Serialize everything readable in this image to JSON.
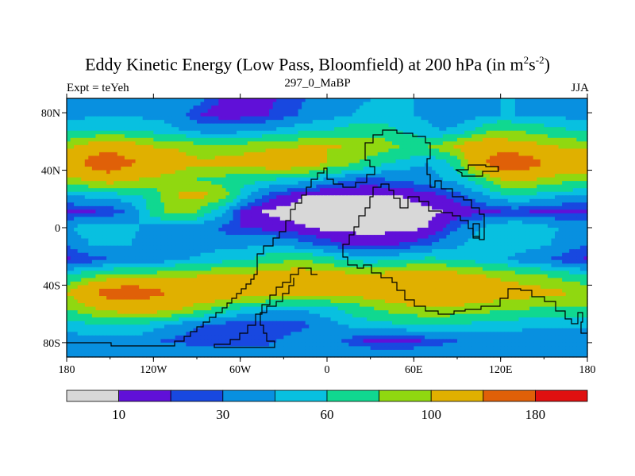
{
  "title": {
    "main": "Eddy Kinetic Energy (Low Pass, Bloomfield) at 200 hPa (in m",
    "sup1": "2",
    "mid": "s",
    "sup2": "-2",
    "end": ")"
  },
  "left_label": "Expt = teYeh",
  "center_label": "297_0_MaBP",
  "right_label": "JJA",
  "colors": {
    "background": "#ffffff",
    "missing": "#d8d8d8",
    "coast": "#000000"
  },
  "chart_data": {
    "type": "heatmap",
    "projection": "cylindrical-equidistant",
    "x_range": [
      -180,
      180
    ],
    "y_range": [
      -90,
      90
    ],
    "x_ticks": [
      {
        "value": -180,
        "label": "180"
      },
      {
        "value": -120,
        "label": "120W"
      },
      {
        "value": -60,
        "label": "60W"
      },
      {
        "value": 0,
        "label": "0"
      },
      {
        "value": 60,
        "label": "60E"
      },
      {
        "value": 120,
        "label": "120E"
      },
      {
        "value": 180,
        "label": "180"
      }
    ],
    "y_ticks": [
      {
        "value": 80,
        "label": "80N"
      },
      {
        "value": 40,
        "label": "40N"
      },
      {
        "value": 0,
        "label": "0"
      },
      {
        "value": -40,
        "label": "40S"
      },
      {
        "value": -80,
        "label": "80S"
      }
    ],
    "levels": [
      10,
      20,
      30,
      45,
      60,
      80,
      100,
      140,
      180
    ],
    "colorbar_labels": [
      {
        "after_box": 1,
        "label": "10"
      },
      {
        "after_box": 3,
        "label": "30"
      },
      {
        "after_box": 5,
        "label": "60"
      },
      {
        "after_box": 7,
        "label": "100"
      },
      {
        "after_box": 9,
        "label": "180"
      }
    ],
    "colors": [
      "#d8d8d8",
      "#6010d8",
      "#1848e0",
      "#0890e0",
      "#08c0e0",
      "#10d890",
      "#90d810",
      "#e0b000",
      "#e06008",
      "#e01010"
    ],
    "field": [
      [
        42,
        45,
        45,
        45,
        45,
        45,
        42,
        40,
        38,
        36,
        25,
        18,
        15,
        15,
        18,
        22,
        28,
        32,
        36,
        40,
        42,
        45,
        45,
        45,
        45,
        45,
        45,
        45,
        45,
        45,
        45,
        45,
        45,
        45,
        45,
        45,
        42
      ],
      [
        38,
        40,
        42,
        42,
        42,
        42,
        40,
        38,
        32,
        22,
        16,
        14,
        14,
        16,
        20,
        25,
        30,
        34,
        38,
        42,
        46,
        48,
        48,
        46,
        45,
        42,
        38,
        36,
        38,
        42,
        45,
        45,
        42,
        40,
        40,
        40,
        38
      ],
      [
        55,
        60,
        62,
        62,
        60,
        58,
        55,
        52,
        45,
        40,
        38,
        38,
        40,
        42,
        45,
        50,
        55,
        58,
        60,
        65,
        70,
        72,
        70,
        60,
        52,
        48,
        45,
        48,
        60,
        75,
        80,
        78,
        75,
        70,
        65,
        60,
        55
      ],
      [
        95,
        105,
        115,
        125,
        120,
        110,
        100,
        98,
        95,
        90,
        88,
        88,
        90,
        92,
        95,
        98,
        100,
        100,
        100,
        100,
        98,
        95,
        88,
        80,
        78,
        80,
        90,
        105,
        120,
        125,
        120,
        115,
        110,
        105,
        100,
        98,
        95
      ],
      [
        130,
        140,
        165,
        175,
        150,
        140,
        130,
        120,
        110,
        105,
        105,
        108,
        110,
        115,
        120,
        125,
        120,
        115,
        100,
        90,
        80,
        70,
        62,
        55,
        48,
        45,
        50,
        70,
        110,
        140,
        170,
        180,
        160,
        140,
        130,
        125,
        130
      ],
      [
        90,
        100,
        110,
        115,
        110,
        100,
        95,
        90,
        85,
        80,
        75,
        72,
        70,
        65,
        62,
        58,
        55,
        50,
        42,
        35,
        30,
        28,
        30,
        32,
        35,
        40,
        45,
        50,
        62,
        80,
        100,
        110,
        105,
        95,
        90,
        88,
        90
      ],
      [
        45,
        48,
        50,
        52,
        55,
        58,
        70,
        90,
        105,
        108,
        100,
        85,
        55,
        40,
        25,
        18,
        12,
        8,
        7,
        7,
        8,
        8,
        9,
        10,
        12,
        15,
        20,
        25,
        35,
        45,
        55,
        60,
        58,
        52,
        48,
        46,
        45
      ],
      [
        15,
        18,
        20,
        22,
        30,
        45,
        68,
        82,
        88,
        80,
        60,
        45,
        20,
        12,
        8,
        6,
        5,
        5,
        5,
        5,
        5,
        6,
        6,
        7,
        7,
        8,
        10,
        12,
        15,
        18,
        20,
        22,
        20,
        18,
        16,
        15,
        15
      ],
      [
        42,
        50,
        55,
        55,
        50,
        45,
        42,
        40,
        38,
        35,
        32,
        25,
        20,
        18,
        16,
        14,
        12,
        9,
        7,
        6,
        6,
        6,
        6,
        6,
        8,
        10,
        18,
        30,
        40,
        48,
        55,
        58,
        55,
        50,
        45,
        42,
        42
      ],
      [
        30,
        40,
        48,
        50,
        48,
        42,
        40,
        38,
        35,
        35,
        38,
        40,
        40,
        42,
        45,
        40,
        35,
        30,
        25,
        20,
        18,
        16,
        18,
        20,
        22,
        28,
        35,
        42,
        48,
        52,
        55,
        55,
        52,
        48,
        42,
        35,
        30
      ],
      [
        18,
        22,
        25,
        28,
        30,
        32,
        35,
        40,
        45,
        48,
        52,
        55,
        58,
        62,
        70,
        75,
        78,
        75,
        68,
        60,
        55,
        52,
        55,
        58,
        62,
        65,
        62,
        58,
        55,
        52,
        48,
        40,
        35,
        30,
        25,
        22,
        18
      ],
      [
        60,
        70,
        80,
        85,
        88,
        90,
        92,
        95,
        98,
        100,
        102,
        105,
        108,
        110,
        115,
        118,
        120,
        118,
        115,
        112,
        110,
        108,
        112,
        118,
        120,
        122,
        118,
        112,
        105,
        100,
        95,
        92,
        88,
        82,
        75,
        68,
        60
      ],
      [
        100,
        120,
        140,
        160,
        170,
        165,
        150,
        140,
        135,
        130,
        128,
        125,
        120,
        118,
        115,
        112,
        110,
        108,
        108,
        108,
        110,
        115,
        120,
        125,
        130,
        132,
        130,
        125,
        120,
        118,
        115,
        112,
        110,
        108,
        105,
        100,
        100
      ],
      [
        80,
        90,
        100,
        108,
        115,
        118,
        115,
        110,
        100,
        90,
        80,
        70,
        60,
        55,
        50,
        48,
        48,
        50,
        55,
        62,
        70,
        78,
        85,
        90,
        95,
        98,
        98,
        95,
        92,
        88,
        85,
        82,
        80,
        78,
        76,
        78,
        80
      ],
      [
        50,
        55,
        60,
        62,
        62,
        58,
        52,
        45,
        38,
        32,
        28,
        25,
        22,
        20,
        20,
        22,
        25,
        30,
        38,
        45,
        50,
        52,
        55,
        58,
        60,
        62,
        60,
        58,
        56,
        54,
        52,
        50,
        48,
        48,
        48,
        50,
        50
      ],
      [
        35,
        38,
        40,
        40,
        40,
        38,
        32,
        28,
        26,
        24,
        22,
        22,
        22,
        25,
        28,
        32,
        38,
        40,
        38,
        30,
        22,
        18,
        16,
        16,
        18,
        22,
        26,
        30,
        34,
        36,
        38,
        38,
        36,
        35,
        35,
        35,
        35
      ],
      [
        42,
        45,
        45,
        45,
        45,
        45,
        45,
        45,
        45,
        45,
        45,
        42,
        40,
        38,
        38,
        40,
        42,
        44,
        45,
        45,
        45,
        45,
        45,
        45,
        45,
        45,
        45,
        45,
        45,
        45,
        45,
        45,
        45,
        45,
        45,
        45,
        42
      ]
    ]
  }
}
